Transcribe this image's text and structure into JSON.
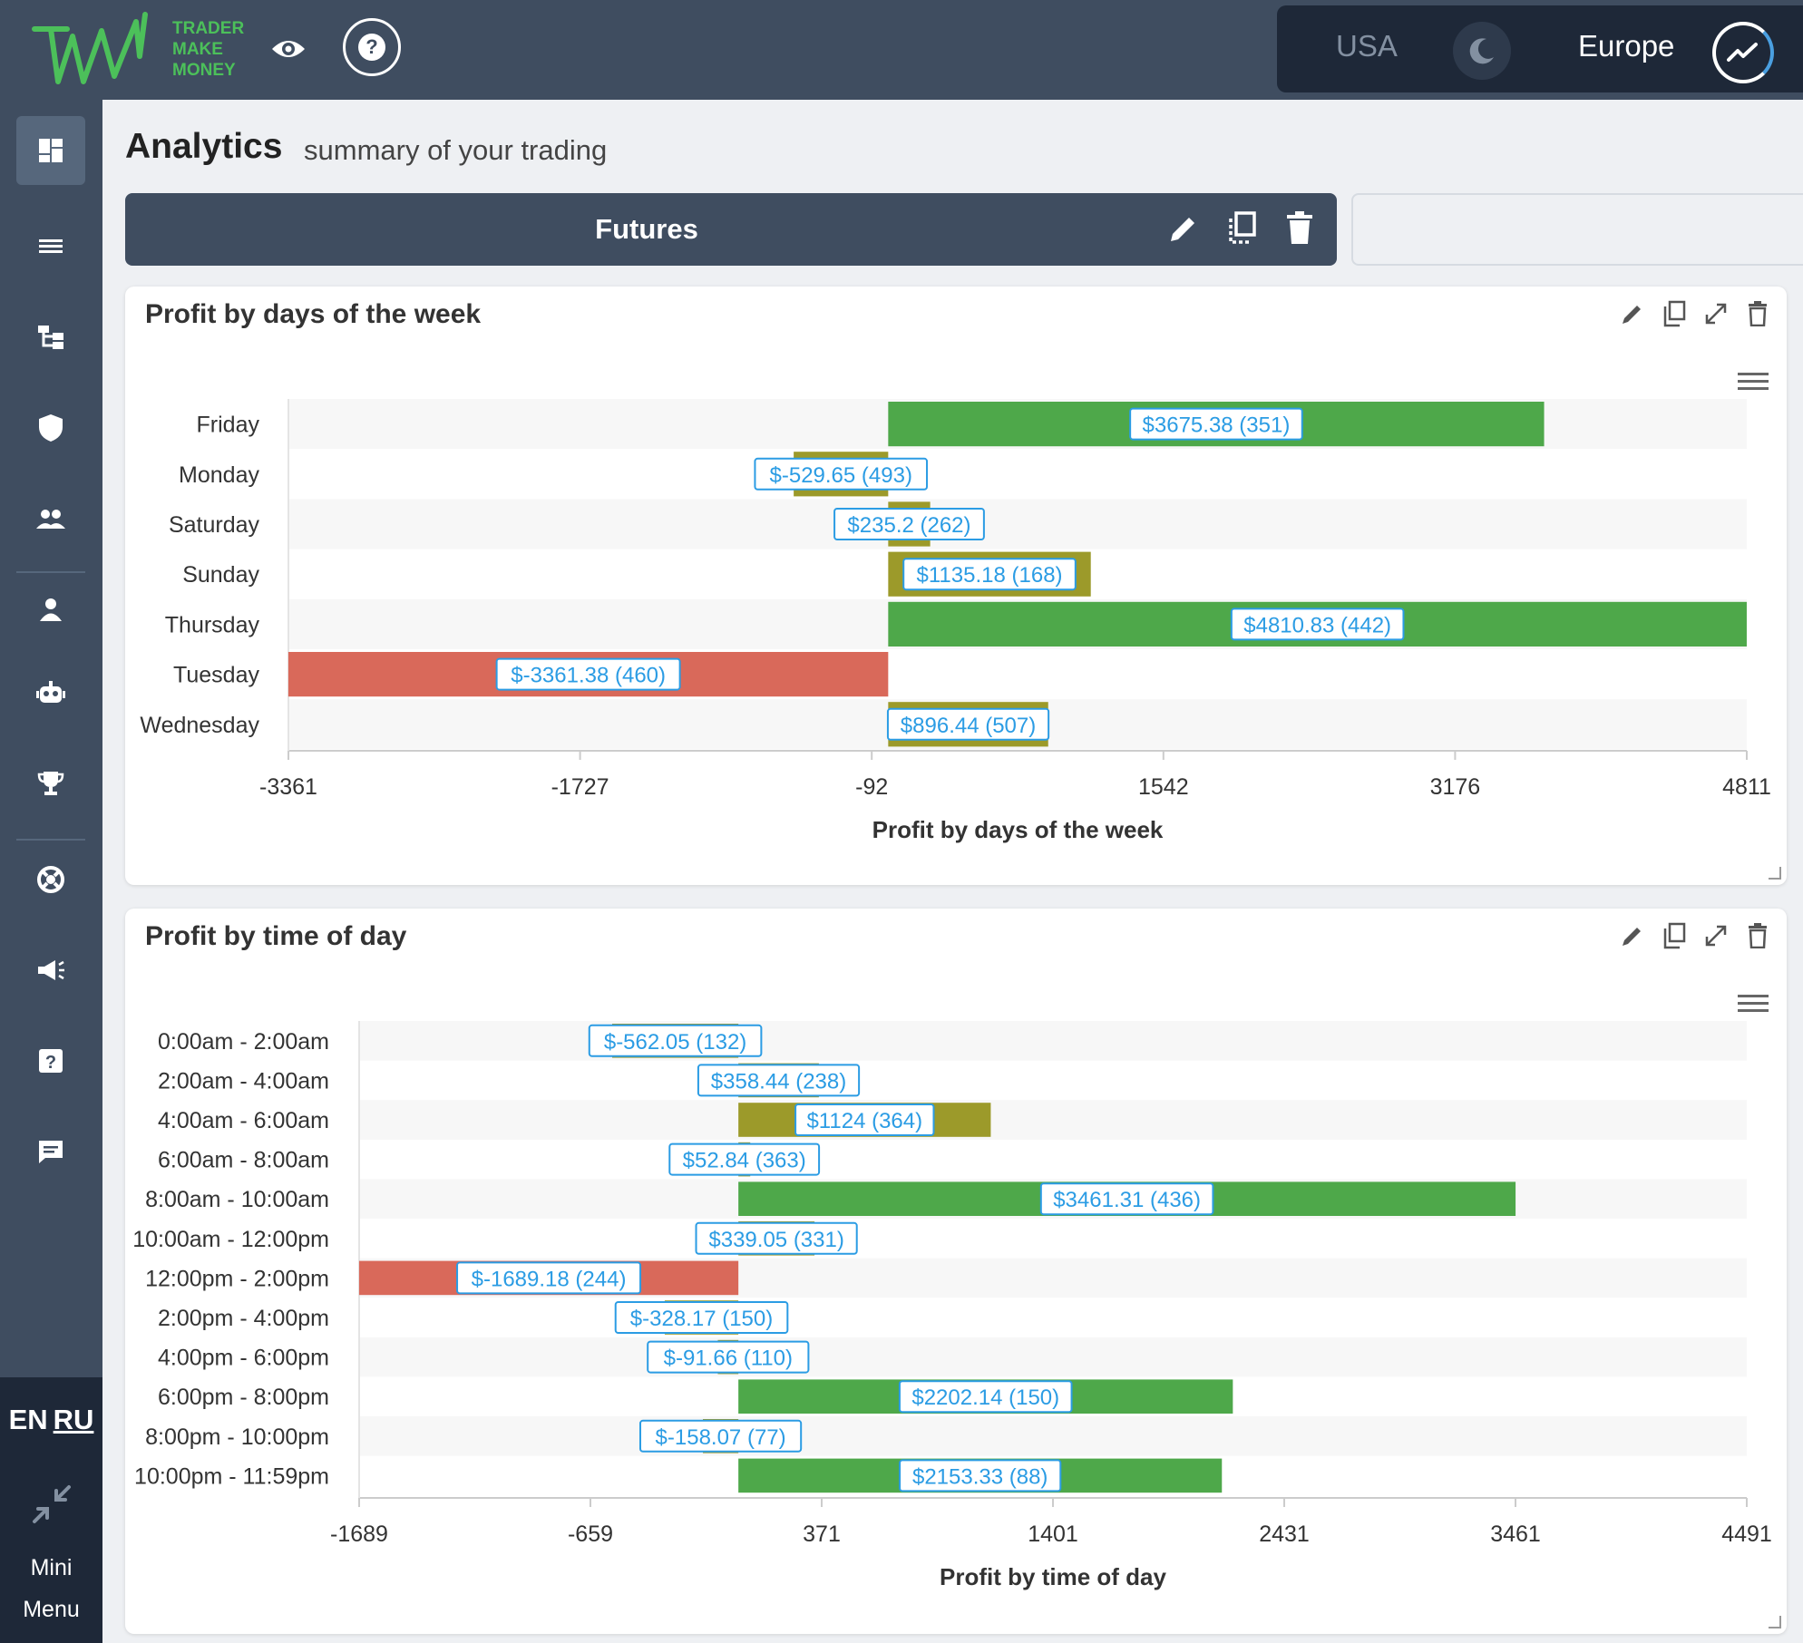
{
  "brand": {
    "line1": "TRADER",
    "line2": "MAKE",
    "line3": "MONEY"
  },
  "markets": {
    "usa": "USA",
    "europe": "Europe"
  },
  "header": {
    "title": "Analytics",
    "subtitle": "summary of your trading"
  },
  "tabs": [
    {
      "label": "Futures"
    }
  ],
  "language": {
    "en": "EN",
    "ru": "RU"
  },
  "mini_menu": {
    "line1": "Mini",
    "line2": "Menu"
  },
  "sidebar": {
    "items": [
      {
        "icon": "dashboard-icon"
      },
      {
        "icon": "list-icon"
      },
      {
        "icon": "hierarchy-icon"
      },
      {
        "icon": "shield-icon"
      },
      {
        "icon": "group-icon"
      },
      {
        "icon": "person-icon"
      },
      {
        "icon": "robot-icon"
      },
      {
        "icon": "trophy-icon"
      },
      {
        "icon": "support-icon"
      },
      {
        "icon": "megaphone-icon"
      },
      {
        "icon": "help-icon"
      },
      {
        "icon": "chat-icon"
      }
    ]
  },
  "colors": {
    "positive": "#4ea84a",
    "small": "#9c9a2a",
    "negative": "#d9695a",
    "label": "#2b9ce4"
  },
  "chart_data": [
    {
      "type": "bar",
      "orientation": "horizontal",
      "title": "Profit by days of the week",
      "xlabel": "Profit by days of the week",
      "categories": [
        "Friday",
        "Monday",
        "Saturday",
        "Sunday",
        "Thursday",
        "Tuesday",
        "Wednesday"
      ],
      "values": [
        3675.38,
        -529.65,
        235.2,
        1135.18,
        4810.83,
        -3361.38,
        896.44
      ],
      "counts": [
        351,
        493,
        262,
        168,
        442,
        460,
        507
      ],
      "labels": [
        "$3675.38 (351)",
        "$-529.65 (493)",
        "$235.2 (262)",
        "$1135.18 (168)",
        "$4810.83 (442)",
        "$-3361.38 (460)",
        "$896.44 (507)"
      ],
      "colors": [
        "positive",
        "small",
        "small",
        "small",
        "positive",
        "negative",
        "small"
      ],
      "xticks": [
        "-3361",
        "-1727",
        "-92",
        "1542",
        "3176",
        "4811"
      ],
      "xlim": [
        -3361,
        4811
      ]
    },
    {
      "type": "bar",
      "orientation": "horizontal",
      "title": "Profit by time of day",
      "xlabel": "Profit by time of day",
      "categories": [
        "0:00am - 2:00am",
        "2:00am - 4:00am",
        "4:00am - 6:00am",
        "6:00am - 8:00am",
        "8:00am - 10:00am",
        "10:00am - 12:00pm",
        "12:00pm - 2:00pm",
        "2:00pm - 4:00pm",
        "4:00pm - 6:00pm",
        "6:00pm - 8:00pm",
        "8:00pm - 10:00pm",
        "10:00pm - 11:59pm"
      ],
      "values": [
        -562.05,
        358.44,
        1124,
        52.84,
        3461.31,
        339.05,
        -1689.18,
        -328.17,
        -91.66,
        2202.14,
        -158.07,
        2153.33
      ],
      "counts": [
        132,
        238,
        364,
        363,
        436,
        331,
        244,
        150,
        110,
        150,
        77,
        88
      ],
      "labels": [
        "$-562.05 (132)",
        "$358.44 (238)",
        "$1124 (364)",
        "$52.84 (363)",
        "$3461.31 (436)",
        "$339.05 (331)",
        "$-1689.18 (244)",
        "$-328.17 (150)",
        "$-91.66 (110)",
        "$2202.14 (150)",
        "$-158.07 (77)",
        "$2153.33 (88)"
      ],
      "colors": [
        "small",
        "small",
        "small",
        "small",
        "positive",
        "small",
        "negative",
        "small",
        "small",
        "positive",
        "small",
        "positive"
      ],
      "xticks": [
        "-1689",
        "-659",
        "371",
        "1401",
        "2431",
        "3461",
        "4491"
      ],
      "xlim": [
        -1689,
        4491
      ]
    }
  ]
}
